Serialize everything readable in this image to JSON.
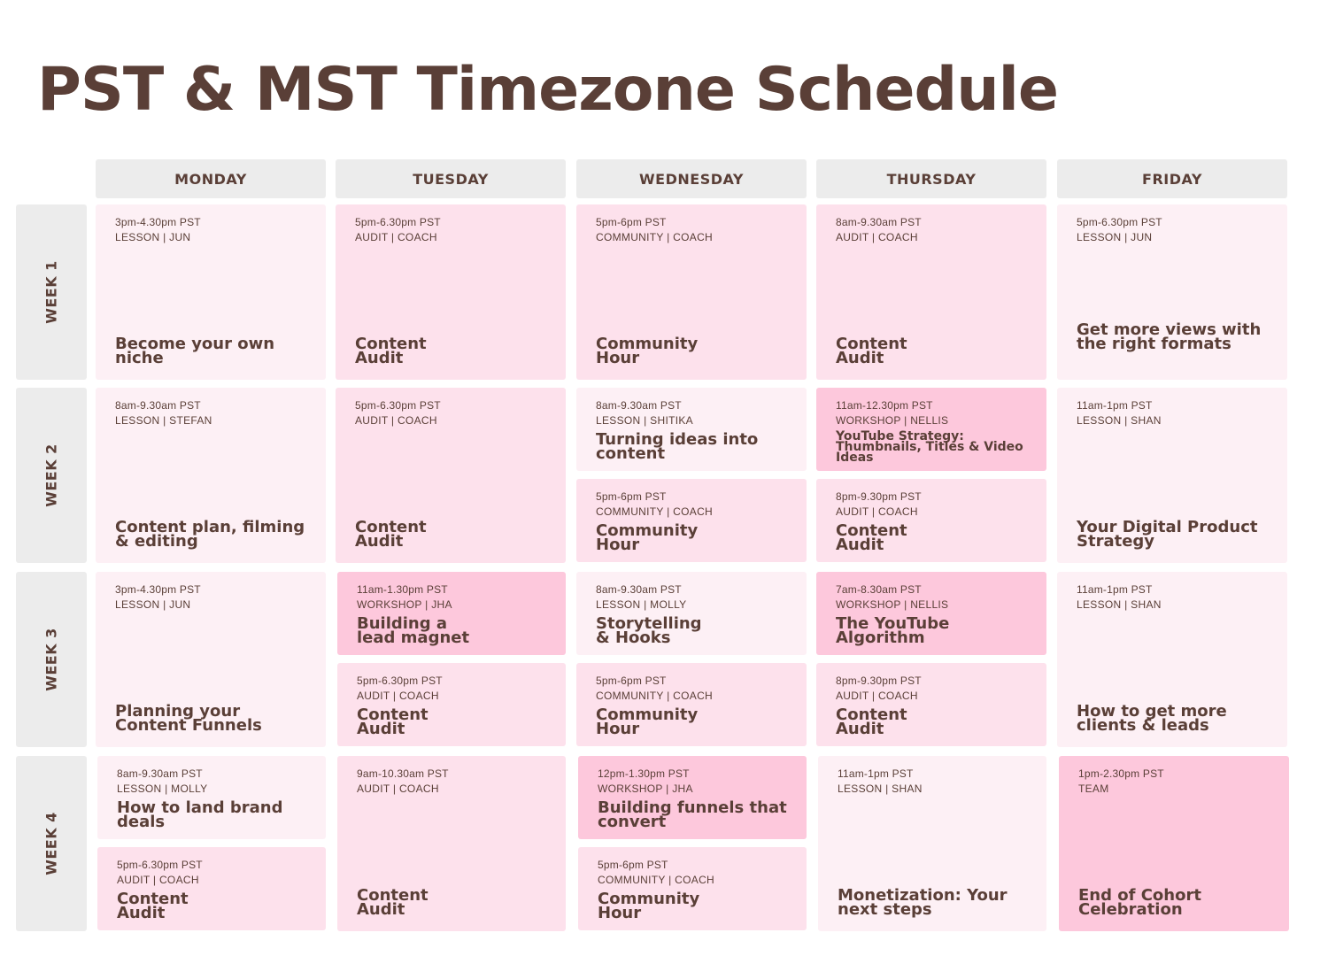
{
  "title": "PST & MST Timezone Schedule",
  "days": [
    "MONDAY",
    "TUESDAY",
    "WEDNESDAY",
    "THURSDAY",
    "FRIDAY"
  ],
  "weeks": [
    "WEEK 1",
    "WEEK 2",
    "WEEK 3",
    "WEEK 4"
  ],
  "colors": {
    "text": "#5a3f37",
    "header": "#ececec",
    "light": "#fdf0f5",
    "mid": "#fde1ec",
    "dark": "#fdc8dc"
  },
  "sessions": {
    "w1_mon": {
      "time": "3pm-4.30pm PST",
      "category": "LESSON | JUN",
      "title": "Become your own niche"
    },
    "w1_tue": {
      "time": "5pm-6.30pm PST",
      "category": "AUDIT | COACH",
      "title": "Content Audit"
    },
    "w1_wed": {
      "time": "5pm-6pm PST",
      "category": "COMMUNITY | COACH",
      "title": "Community Hour"
    },
    "w1_thu": {
      "time": "8am-9.30am PST",
      "category": "AUDIT | COACH",
      "title": "Content Audit"
    },
    "w1_fri": {
      "time": "5pm-6.30pm PST",
      "category": "LESSON | JUN",
      "title": "Get more views with the right formats"
    },
    "w2_mon": {
      "time": "8am-9.30am PST",
      "category": "LESSON | STEFAN",
      "title": "Content plan, filming & editing"
    },
    "w2_tue": {
      "time": "5pm-6.30pm PST",
      "category": "AUDIT | COACH",
      "title": "Content Audit"
    },
    "w2_wed_a": {
      "time": "8am-9.30am PST",
      "category": "LESSON | SHITIKA",
      "title": "Turning ideas into content"
    },
    "w2_wed_b": {
      "time": "5pm-6pm PST",
      "category": "COMMUNITY | COACH",
      "title": "Community Hour"
    },
    "w2_thu_a": {
      "time": "11am-12.30pm PST",
      "category": "WORKSHOP | NELLIS",
      "title": "YouTube Strategy: Thumbnails, Titles & Video Ideas"
    },
    "w2_thu_b": {
      "time": "8pm-9.30pm PST",
      "category": "AUDIT | COACH",
      "title": "Content Audit"
    },
    "w2_fri": {
      "time": "11am-1pm PST",
      "category": "LESSON | SHAN",
      "title": "Your Digital Product Strategy"
    },
    "w3_mon": {
      "time": "3pm-4.30pm PST",
      "category": "LESSON | JUN",
      "title": "Planning your Content Funnels"
    },
    "w3_tue_a": {
      "time": "11am-1.30pm PST",
      "category": "WORKSHOP | JHA",
      "title": "Building a lead magnet"
    },
    "w3_tue_b": {
      "time": "5pm-6.30pm PST",
      "category": "AUDIT | COACH",
      "title": "Content Audit"
    },
    "w3_wed_a": {
      "time": "8am-9.30am PST",
      "category": "LESSON | MOLLY",
      "title": "Storytelling & Hooks"
    },
    "w3_wed_b": {
      "time": "5pm-6pm PST",
      "category": "COMMUNITY | COACH",
      "title": "Community Hour"
    },
    "w3_thu_a": {
      "time": "7am-8.30am PST",
      "category": "WORKSHOP | NELLIS",
      "title": "The YouTube Algorithm"
    },
    "w3_thu_b": {
      "time": "8pm-9.30pm PST",
      "category": "AUDIT | COACH",
      "title": "Content Audit"
    },
    "w3_fri": {
      "time": "11am-1pm PST",
      "category": "LESSON | SHAN",
      "title": "How to get more clients & leads"
    },
    "w4_mon_a": {
      "time": "8am-9.30am PST",
      "category": "LESSON | MOLLY",
      "title": "How to land brand deals"
    },
    "w4_mon_b": {
      "time": "5pm-6.30pm PST",
      "category": "AUDIT | COACH",
      "title": "Content Audit"
    },
    "w4_tue": {
      "time": "9am-10.30am PST",
      "category": "AUDIT | COACH",
      "title": "Content Audit"
    },
    "w4_wed_a": {
      "time": "12pm-1.30pm PST",
      "category": "WORKSHOP | JHA",
      "title": "Building funnels that convert"
    },
    "w4_wed_b": {
      "time": "5pm-6pm PST",
      "category": "COMMUNITY | COACH",
      "title": "Community Hour"
    },
    "w4_thu": {
      "time": "11am-1pm PST",
      "category": "LESSON | SHAN",
      "title": "Monetization: Your next steps"
    },
    "w4_fri": {
      "time": "1pm-2.30pm PST",
      "category": "TEAM",
      "title": "End of Cohort Celebration"
    }
  }
}
